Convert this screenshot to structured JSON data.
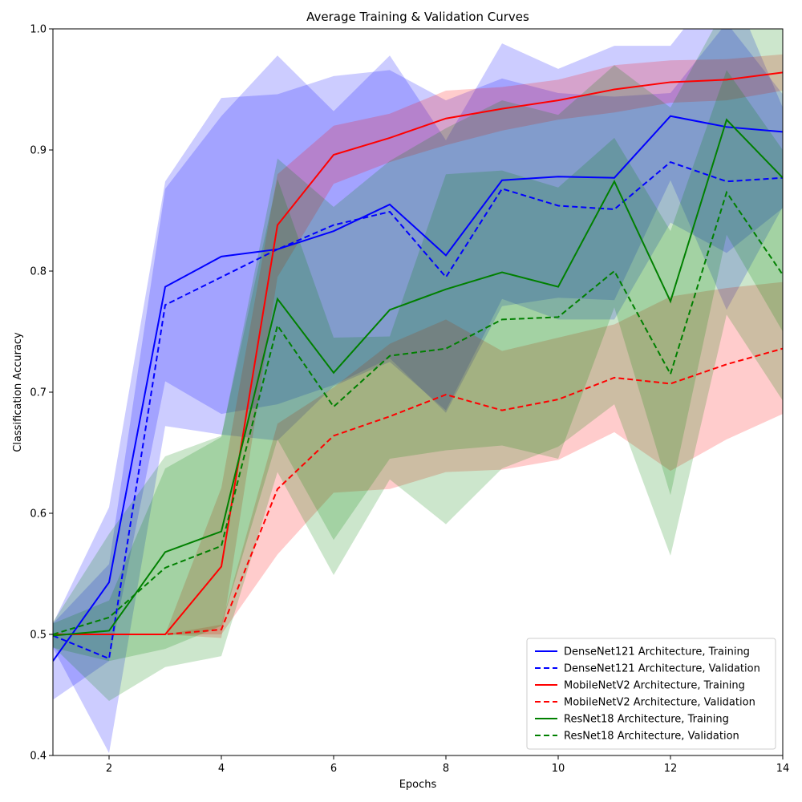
{
  "chart_data": {
    "type": "line",
    "title": "Average Training & Validation Curves",
    "xlabel": "Epochs",
    "ylabel": "Classification Accuracy",
    "xlim": [
      1,
      14
    ],
    "ylim": [
      0.4,
      1.0
    ],
    "xticks": [
      "2",
      "4",
      "6",
      "8",
      "10",
      "12",
      "14"
    ],
    "yticks": [
      "0.4",
      "0.5",
      "0.6",
      "0.7",
      "0.8",
      "0.9",
      "1.0"
    ],
    "grid": false,
    "legend_position": "lower-right",
    "x": [
      1,
      2,
      3,
      4,
      5,
      6,
      7,
      8,
      9,
      10,
      11,
      12,
      13,
      14
    ],
    "series": [
      {
        "name": "DenseNet121 Architecture, Training",
        "color": "#0000ff",
        "style": "solid",
        "values": [
          0.478,
          0.543,
          0.787,
          0.812,
          0.818,
          0.833,
          0.855,
          0.813,
          0.875,
          0.878,
          0.877,
          0.928,
          0.919,
          0.915
        ],
        "lower": [
          0.446,
          0.478,
          0.709,
          0.682,
          0.69,
          0.706,
          0.728,
          0.683,
          0.771,
          0.778,
          0.776,
          0.875,
          0.768,
          0.853
        ],
        "upper": [
          0.509,
          0.605,
          0.874,
          0.943,
          0.946,
          0.961,
          0.966,
          0.941,
          0.959,
          0.947,
          0.944,
          0.947,
          1.005,
          0.946
        ]
      },
      {
        "name": "DenseNet121 Architecture, Validation",
        "color": "#0000ff",
        "style": "dashed",
        "values": [
          0.499,
          0.48,
          0.772,
          0.795,
          0.818,
          0.838,
          0.849,
          0.795,
          0.868,
          0.854,
          0.851,
          0.89,
          0.874,
          0.877
        ],
        "lower": [
          0.489,
          0.402,
          0.672,
          0.665,
          0.66,
          0.705,
          0.725,
          0.685,
          0.777,
          0.76,
          0.76,
          0.84,
          0.815,
          0.852
        ],
        "upper": [
          0.509,
          0.558,
          0.868,
          0.928,
          0.978,
          0.932,
          0.978,
          0.908,
          0.988,
          0.967,
          0.986,
          0.986,
          1.045,
          0.935
        ]
      },
      {
        "name": "MobileNetV2 Architecture, Training",
        "color": "#ff0000",
        "style": "solid",
        "values": [
          0.5,
          0.5,
          0.5,
          0.556,
          0.838,
          0.896,
          0.91,
          0.926,
          0.934,
          0.941,
          0.95,
          0.956,
          0.958,
          0.964
        ],
        "lower": [
          0.5,
          0.5,
          0.5,
          0.497,
          0.795,
          0.872,
          0.89,
          0.904,
          0.916,
          0.925,
          0.931,
          0.939,
          0.941,
          0.949
        ],
        "upper": [
          0.5,
          0.5,
          0.5,
          0.621,
          0.88,
          0.92,
          0.93,
          0.949,
          0.952,
          0.958,
          0.97,
          0.974,
          0.975,
          0.979
        ]
      },
      {
        "name": "MobileNetV2 Architecture, Validation",
        "color": "#ff0000",
        "style": "dashed",
        "values": [
          0.5,
          0.5,
          0.5,
          0.504,
          0.62,
          0.664,
          0.68,
          0.698,
          0.685,
          0.694,
          0.712,
          0.707,
          0.723,
          0.736
        ],
        "lower": [
          0.5,
          0.5,
          0.5,
          0.5,
          0.566,
          0.617,
          0.62,
          0.634,
          0.636,
          0.644,
          0.667,
          0.635,
          0.661,
          0.682
        ],
        "upper": [
          0.5,
          0.5,
          0.5,
          0.508,
          0.674,
          0.704,
          0.74,
          0.76,
          0.734,
          0.745,
          0.756,
          0.779,
          0.786,
          0.791
        ]
      },
      {
        "name": "ResNet18 Architecture, Training",
        "color": "#008000",
        "style": "solid",
        "values": [
          0.499,
          0.503,
          0.568,
          0.585,
          0.777,
          0.716,
          0.768,
          0.785,
          0.799,
          0.787,
          0.874,
          0.775,
          0.925,
          0.877
        ],
        "lower": [
          0.489,
          0.478,
          0.488,
          0.507,
          0.661,
          0.578,
          0.645,
          0.652,
          0.656,
          0.645,
          0.77,
          0.615,
          0.83,
          0.75
        ],
        "upper": [
          0.509,
          0.528,
          0.637,
          0.663,
          0.893,
          0.853,
          0.891,
          0.918,
          0.941,
          0.929,
          0.97,
          0.935,
          1.02,
          1.005
        ]
      },
      {
        "name": "ResNet18 Architecture, Validation",
        "color": "#008000",
        "style": "dashed",
        "values": [
          0.5,
          0.514,
          0.555,
          0.573,
          0.755,
          0.688,
          0.73,
          0.736,
          0.76,
          0.762,
          0.8,
          0.715,
          0.865,
          0.797
        ],
        "lower": [
          0.49,
          0.445,
          0.473,
          0.482,
          0.634,
          0.549,
          0.628,
          0.591,
          0.637,
          0.655,
          0.69,
          0.565,
          0.764,
          0.693
        ],
        "upper": [
          0.51,
          0.583,
          0.647,
          0.664,
          0.876,
          0.745,
          0.746,
          0.88,
          0.883,
          0.869,
          0.91,
          0.833,
          0.966,
          0.9
        ]
      }
    ]
  }
}
